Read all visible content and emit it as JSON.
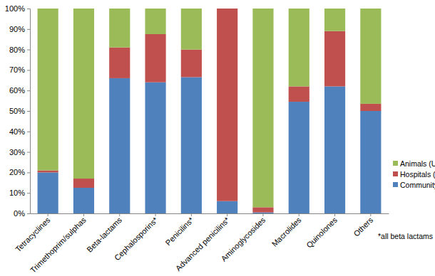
{
  "chart_data": {
    "type": "bar",
    "stacked": true,
    "legend": "right",
    "grid": false,
    "annotation": "*all beta lactams",
    "categories": [
      "Tetracyclines",
      "Trimethoprim/sulphas",
      "Beta-lactams",
      "Cephalosporins*",
      "Penicilins*",
      "Advanced penicilins*",
      "Aminoglycosides",
      "Macrolides",
      "Quinolones",
      "Others"
    ],
    "series": [
      {
        "name": "Community (UK)",
        "color": "#4f81bd",
        "values": [
          20,
          12.5,
          66,
          64,
          66.5,
          6,
          0.5,
          54.5,
          62,
          50
        ]
      },
      {
        "name": "Hospitals (E, W)",
        "color": "#c0504d",
        "values": [
          1,
          4.5,
          15,
          23.5,
          13.5,
          94,
          2.5,
          7.5,
          27,
          3.5
        ]
      },
      {
        "name": "Animals (UK)",
        "color": "#9bbb59",
        "values": [
          79,
          83,
          19,
          12.5,
          20,
          0,
          97,
          38,
          11,
          46.5
        ]
      }
    ],
    "ylim": [
      0,
      100
    ],
    "yticks": [
      {
        "value": 0,
        "label": "0%"
      },
      {
        "value": 10,
        "label": "10%"
      },
      {
        "value": 20,
        "label": "20%"
      },
      {
        "value": 30,
        "label": "30%"
      },
      {
        "value": 40,
        "label": "40%"
      },
      {
        "value": 50,
        "label": "50%"
      },
      {
        "value": 60,
        "label": "60%"
      },
      {
        "value": 70,
        "label": "70%"
      },
      {
        "value": 80,
        "label": "80%"
      },
      {
        "value": 90,
        "label": "90%"
      },
      {
        "value": 100,
        "label": "100%"
      }
    ]
  }
}
